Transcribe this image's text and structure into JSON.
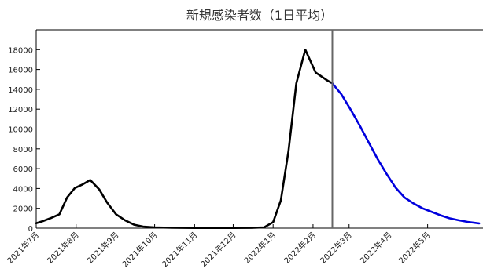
{
  "chart_data": {
    "type": "line",
    "title": "新規感染者数（1日平均）",
    "xlabel": "",
    "ylabel": "",
    "ylim": [
      0,
      20000
    ],
    "yticks": [
      0,
      2000,
      4000,
      6000,
      8000,
      10000,
      12000,
      14000,
      16000,
      18000
    ],
    "xlim": [
      "2021-07-01",
      "2022-06-13"
    ],
    "xticks": [
      {
        "date": "2021-07-01",
        "label": "2021年7月"
      },
      {
        "date": "2021-08-01",
        "label": "2021年8月"
      },
      {
        "date": "2021-09-01",
        "label": "2021年9月"
      },
      {
        "date": "2021-10-01",
        "label": "2021年10月"
      },
      {
        "date": "2021-11-01",
        "label": "2021年11月"
      },
      {
        "date": "2021-12-01",
        "label": "2021年12月"
      },
      {
        "date": "2022-01-01",
        "label": "2022年1月"
      },
      {
        "date": "2022-02-01",
        "label": "2022年2月"
      },
      {
        "date": "2022-03-01",
        "label": "2022年3月"
      },
      {
        "date": "2022-04-01",
        "label": "2022年4月"
      },
      {
        "date": "2022-05-01",
        "label": "2022年5月"
      }
    ],
    "grid": false,
    "legend": "none",
    "marker_line": {
      "date": "2022-02-16",
      "color": "#666666"
    },
    "series": [
      {
        "color": "#000000",
        "points": [
          {
            "x": "2021-07-01",
            "y": 500
          },
          {
            "x": "2021-07-06",
            "y": 700
          },
          {
            "x": "2021-07-12",
            "y": 1000
          },
          {
            "x": "2021-07-19",
            "y": 1400
          },
          {
            "x": "2021-07-25",
            "y": 3100
          },
          {
            "x": "2021-07-31",
            "y": 4050
          },
          {
            "x": "2021-08-06",
            "y": 4400
          },
          {
            "x": "2021-08-12",
            "y": 4850
          },
          {
            "x": "2021-08-19",
            "y": 3900
          },
          {
            "x": "2021-08-25",
            "y": 2600
          },
          {
            "x": "2021-09-01",
            "y": 1400
          },
          {
            "x": "2021-09-08",
            "y": 800
          },
          {
            "x": "2021-09-15",
            "y": 350
          },
          {
            "x": "2021-09-22",
            "y": 160
          },
          {
            "x": "2021-10-01",
            "y": 80
          },
          {
            "x": "2021-10-15",
            "y": 40
          },
          {
            "x": "2021-11-01",
            "y": 25
          },
          {
            "x": "2021-11-15",
            "y": 20
          },
          {
            "x": "2021-12-01",
            "y": 20
          },
          {
            "x": "2021-12-15",
            "y": 30
          },
          {
            "x": "2021-12-25",
            "y": 80
          },
          {
            "x": "2022-01-01",
            "y": 600
          },
          {
            "x": "2022-01-07",
            "y": 2800
          },
          {
            "x": "2022-01-13",
            "y": 7800
          },
          {
            "x": "2022-01-19",
            "y": 14600
          },
          {
            "x": "2022-01-26",
            "y": 18000
          },
          {
            "x": "2022-02-03",
            "y": 15700
          },
          {
            "x": "2022-02-12",
            "y": 14900
          },
          {
            "x": "2022-02-16",
            "y": 14600
          }
        ]
      },
      {
        "color": "#0000dd",
        "points": [
          {
            "x": "2022-02-16",
            "y": 14600
          },
          {
            "x": "2022-02-23",
            "y": 13500
          },
          {
            "x": "2022-03-02",
            "y": 12000
          },
          {
            "x": "2022-03-09",
            "y": 10400
          },
          {
            "x": "2022-03-16",
            "y": 8700
          },
          {
            "x": "2022-03-23",
            "y": 7000
          },
          {
            "x": "2022-03-30",
            "y": 5500
          },
          {
            "x": "2022-04-06",
            "y": 4100
          },
          {
            "x": "2022-04-13",
            "y": 3100
          },
          {
            "x": "2022-04-20",
            "y": 2500
          },
          {
            "x": "2022-04-27",
            "y": 2000
          },
          {
            "x": "2022-05-04",
            "y": 1650
          },
          {
            "x": "2022-05-11",
            "y": 1300
          },
          {
            "x": "2022-05-18",
            "y": 1000
          },
          {
            "x": "2022-05-25",
            "y": 800
          },
          {
            "x": "2022-06-01",
            "y": 630
          },
          {
            "x": "2022-06-10",
            "y": 480
          }
        ]
      }
    ]
  }
}
